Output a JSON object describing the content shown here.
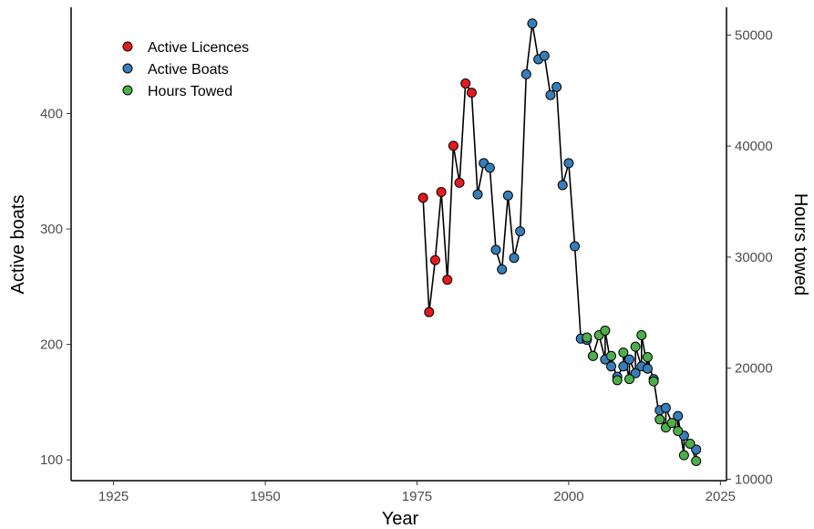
{
  "chart_data": {
    "type": "line",
    "xlabel": "Year",
    "ylabel_left": "Active boats",
    "ylabel_right": "Hours towed",
    "xlim": [
      1918,
      2026
    ],
    "ylim_left": [
      82,
      492
    ],
    "ylim_right": [
      9867,
      52500
    ],
    "x_ticks": [
      1925,
      1950,
      1975,
      2000,
      2025
    ],
    "y_left_ticks": [
      100,
      200,
      300,
      400
    ],
    "y_right_ticks": [
      10000,
      20000,
      30000,
      40000,
      50000
    ],
    "x_tick_labels": [
      "1925",
      "1950",
      "1975",
      "2000",
      "2025"
    ],
    "y_left_tick_labels": [
      "100",
      "200",
      "300",
      "400"
    ],
    "y_right_tick_labels": [
      "10000",
      "20000",
      "30000",
      "40000",
      "50000"
    ],
    "grid": false,
    "legend_position": "top-left",
    "colors": {
      "Active Licences": "#e41a1c",
      "Active Boats": "#377eb8",
      "Hours Towed": "#4daf4a",
      "line": "#000000"
    },
    "series": [
      {
        "name": "Active Licences",
        "x": [
          1976,
          1977,
          1978,
          1979,
          1980,
          1981,
          1982,
          1983,
          1984
        ],
        "y": [
          327,
          228,
          273,
          332,
          256,
          372,
          340,
          426,
          418
        ]
      },
      {
        "name": "Active Boats",
        "x": [
          1985,
          1986,
          1987,
          1988,
          1989,
          1990,
          1991,
          1992,
          1993,
          1994,
          1995,
          1996,
          1997,
          1998,
          1999,
          2000,
          2001,
          2002,
          2003,
          2004,
          2006,
          2007,
          2008,
          2009,
          2010,
          2011,
          2012,
          2013,
          2014,
          2015,
          2016,
          2018,
          2019,
          2021
        ],
        "y": [
          330,
          357,
          353,
          282,
          265,
          329,
          275,
          298,
          434,
          478,
          447,
          450,
          416,
          423,
          338,
          357,
          285,
          205,
          204,
          190,
          187,
          181,
          172,
          181,
          187,
          175,
          181,
          179,
          170,
          143,
          145,
          138,
          121,
          109
        ]
      },
      {
        "name": "Hours Towed",
        "x": [
          2003,
          2004,
          2005,
          2006,
          2007,
          2008,
          2009,
          2010,
          2011,
          2012,
          2013,
          2014,
          2015,
          2016,
          2017,
          2018,
          2019,
          2020,
          2021
        ],
        "y": [
          206,
          190,
          208,
          212,
          190,
          169,
          193,
          170,
          198,
          208,
          189,
          168,
          135,
          128,
          132,
          125,
          104,
          114,
          99
        ]
      }
    ]
  }
}
